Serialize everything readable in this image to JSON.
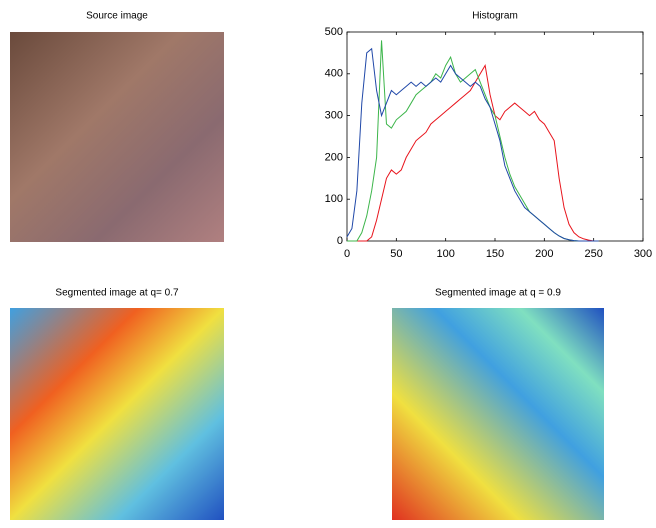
{
  "images": [
    {
      "title": "Source image"
    },
    {
      "title": "Segmented image at q= 0.7"
    },
    {
      "title": "Segmented image at q = 0.9"
    }
  ],
  "chart_data": {
    "type": "line",
    "title": "Histogram",
    "x": [
      0,
      5,
      10,
      15,
      20,
      25,
      30,
      35,
      40,
      45,
      50,
      55,
      60,
      65,
      70,
      75,
      80,
      85,
      90,
      95,
      100,
      105,
      110,
      115,
      120,
      125,
      130,
      135,
      140,
      145,
      150,
      155,
      160,
      165,
      170,
      175,
      180,
      185,
      190,
      195,
      200,
      205,
      210,
      215,
      220,
      225,
      230,
      235,
      240,
      245,
      250,
      255
    ],
    "series": [
      {
        "color": "#e8141c",
        "values": [
          0,
          0,
          0,
          0,
          0,
          10,
          50,
          100,
          150,
          170,
          160,
          170,
          200,
          220,
          240,
          250,
          260,
          280,
          290,
          300,
          310,
          320,
          330,
          340,
          350,
          360,
          380,
          400,
          420,
          350,
          300,
          290,
          310,
          320,
          330,
          320,
          310,
          300,
          310,
          290,
          280,
          260,
          240,
          150,
          80,
          40,
          20,
          10,
          5,
          2,
          0,
          0
        ]
      },
      {
        "color": "#3cb54a",
        "values": [
          0,
          0,
          0,
          20,
          60,
          120,
          200,
          480,
          280,
          270,
          290,
          300,
          310,
          330,
          350,
          360,
          370,
          380,
          400,
          390,
          420,
          440,
          400,
          380,
          390,
          400,
          410,
          380,
          350,
          320,
          300,
          250,
          200,
          160,
          130,
          110,
          90,
          70,
          60,
          50,
          40,
          30,
          20,
          12,
          6,
          3,
          1,
          0,
          0,
          0,
          0,
          0
        ]
      },
      {
        "color": "#2048a8",
        "values": [
          10,
          30,
          120,
          330,
          450,
          460,
          360,
          300,
          330,
          360,
          350,
          360,
          370,
          380,
          370,
          380,
          370,
          380,
          390,
          380,
          400,
          420,
          400,
          390,
          380,
          370,
          380,
          370,
          340,
          320,
          280,
          240,
          180,
          150,
          120,
          100,
          80,
          70,
          60,
          50,
          40,
          30,
          20,
          12,
          6,
          3,
          1,
          0,
          0,
          0,
          0,
          0
        ]
      }
    ],
    "xlim": [
      0,
      300
    ],
    "xticks": [
      0,
      50,
      100,
      150,
      200,
      250,
      300
    ],
    "ylim": [
      0,
      500
    ],
    "yticks": [
      0,
      100,
      200,
      300,
      400,
      500
    ]
  }
}
